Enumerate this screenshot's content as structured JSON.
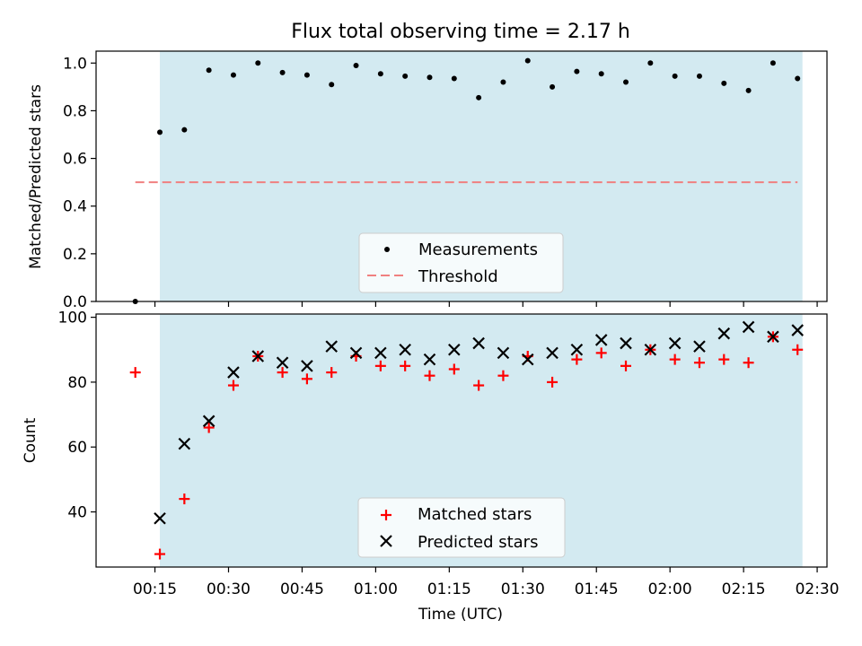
{
  "chart_data": [
    {
      "type": "scatter",
      "title": "Flux total observing time = 2.17 h",
      "xlabel": "",
      "ylabel": "Matched/Predicted stars",
      "ylim": [
        0,
        1.05
      ],
      "yticks": [
        0,
        0.2,
        0.4,
        0.6,
        0.8,
        1.0
      ],
      "ytick_labels": [
        "0.0",
        "0.2",
        "0.4",
        "0.6",
        "0.8",
        "1.0"
      ],
      "x_unit": "minutes after 00:00 UTC",
      "xlim": [
        3,
        152
      ],
      "observing_window": [
        16,
        147
      ],
      "shade_color": "#d3eaf1",
      "series": [
        {
          "name": "Measurements",
          "marker": "dot",
          "color": "#000000",
          "x": [
            11,
            16,
            21,
            26,
            31,
            36,
            41,
            46,
            51,
            56,
            61,
            66,
            71,
            76,
            81,
            86,
            91,
            96,
            101,
            106,
            111,
            116,
            121,
            126,
            131,
            136,
            141,
            146
          ],
          "y": [
            0.0,
            0.71,
            0.72,
            0.97,
            0.95,
            1.0,
            0.96,
            0.95,
            0.91,
            0.99,
            0.955,
            0.945,
            0.94,
            0.935,
            0.855,
            0.92,
            1.01,
            0.9,
            0.965,
            0.955,
            0.92,
            1.0,
            0.945,
            0.945,
            0.915,
            0.885,
            1.0,
            0.935
          ]
        },
        {
          "name": "Threshold",
          "line": "dashed",
          "color": "#f08080",
          "x": [
            11,
            146
          ],
          "y": [
            0.5,
            0.5
          ]
        }
      ],
      "legend": "lower center"
    },
    {
      "type": "scatter",
      "xlabel": "Time (UTC)",
      "ylabel": "Count",
      "ylim": [
        23,
        101
      ],
      "yticks": [
        40,
        60,
        80,
        100
      ],
      "ytick_labels": [
        "40",
        "60",
        "80",
        "100"
      ],
      "x_unit": "minutes after 00:00 UTC",
      "xlim": [
        3,
        152
      ],
      "xticks": [
        15,
        30,
        45,
        60,
        75,
        90,
        105,
        120,
        135,
        150
      ],
      "xtick_labels": [
        "00:15",
        "00:30",
        "00:45",
        "01:00",
        "01:15",
        "01:30",
        "01:45",
        "02:00",
        "02:15",
        "02:30"
      ],
      "observing_window": [
        16,
        147
      ],
      "shade_color": "#d3eaf1",
      "series": [
        {
          "name": "Matched stars",
          "marker": "plus",
          "color": "#ff0000",
          "x": [
            11,
            16,
            21,
            26,
            31,
            36,
            41,
            46,
            51,
            56,
            61,
            66,
            71,
            76,
            81,
            86,
            91,
            96,
            101,
            106,
            111,
            116,
            121,
            126,
            131,
            136,
            141,
            146
          ],
          "y": [
            83,
            27,
            44,
            66,
            79,
            88,
            83,
            81,
            83,
            88,
            85,
            85,
            82,
            84,
            79,
            82,
            88,
            80,
            87,
            89,
            85,
            90,
            87,
            86,
            87,
            86,
            94,
            90
          ]
        },
        {
          "name": "Predicted stars",
          "marker": "x",
          "color": "#000000",
          "x": [
            16,
            21,
            26,
            31,
            36,
            41,
            46,
            51,
            56,
            61,
            66,
            71,
            76,
            81,
            86,
            91,
            96,
            101,
            106,
            111,
            116,
            121,
            126,
            131,
            136,
            141,
            146
          ],
          "y": [
            38,
            61,
            68,
            83,
            88,
            86,
            85,
            91,
            89,
            89,
            90,
            87,
            90,
            92,
            89,
            87,
            89,
            90,
            93,
            92,
            90,
            92,
            91,
            95,
            97,
            94,
            96
          ]
        }
      ],
      "legend": "lower center"
    }
  ]
}
